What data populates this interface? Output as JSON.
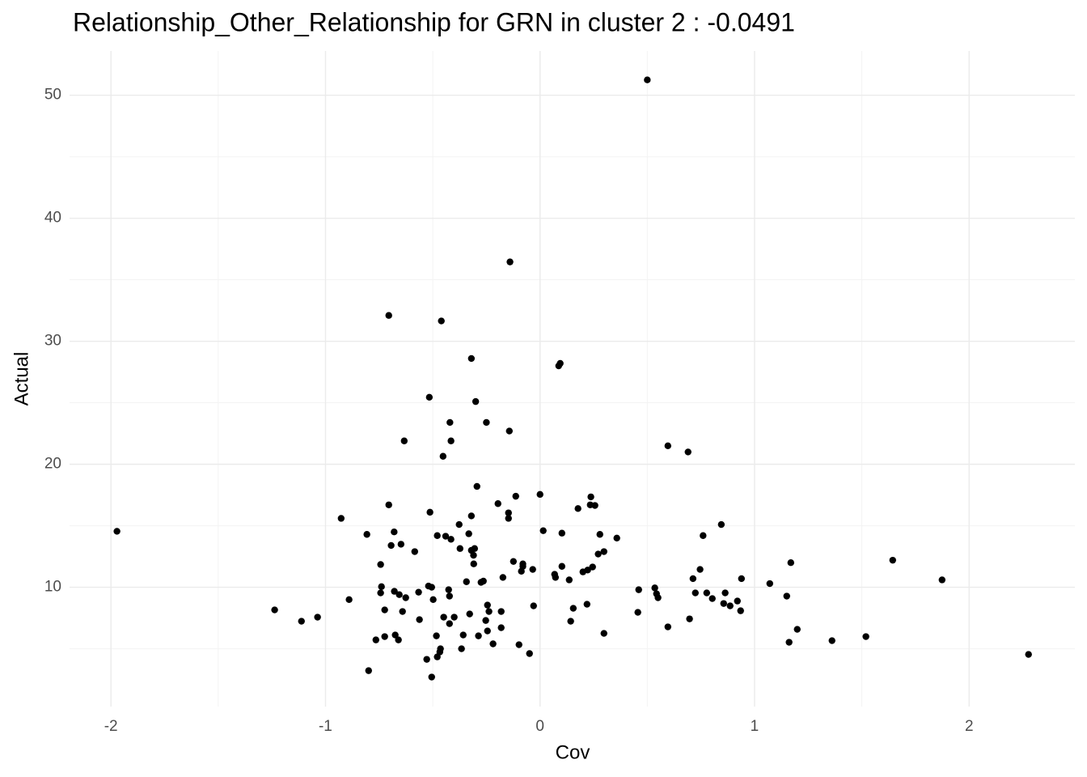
{
  "chart_data": {
    "type": "scatter",
    "title": "Relationship_Other_Relationship for GRN in cluster 2 : -0.0491",
    "x_label": "Cov",
    "y_label": "Actual",
    "xlim": [
      -2.193,
      2.493
    ],
    "ylim": [
      0.3,
      53.6
    ],
    "xticks": [
      -2,
      -1,
      0,
      1,
      2
    ],
    "yticks": [
      10,
      20,
      30,
      40,
      50
    ],
    "xminor_ticks": [
      -1.5,
      -0.5,
      0.5,
      1.5
    ],
    "yminor_ticks": [
      5,
      15,
      25,
      35,
      45
    ],
    "grid": true,
    "color": "#000000",
    "x": [
      0.5,
      -0.14,
      -0.705,
      -0.46,
      -0.32,
      0.094,
      0.087,
      -0.516,
      -0.3,
      -0.42,
      -0.25,
      -0.143,
      -0.633,
      -0.415,
      0.596,
      0.69,
      -0.452,
      -0.294,
      -0.113,
      0.0,
      0.237,
      -0.196,
      -0.705,
      0.234,
      0.256,
      0.177,
      -0.513,
      -0.147,
      -0.147,
      -0.927,
      -0.32,
      0.845,
      -0.377,
      0.015,
      -1.972,
      -0.68,
      0.102,
      -0.807,
      -0.479,
      -0.332,
      -0.44,
      -0.415,
      0.279,
      0.76,
      0.358,
      -0.694,
      -0.648,
      -0.373,
      -0.32,
      -0.305,
      -0.584,
      0.298,
      0.271,
      -0.31,
      1.644,
      -0.124,
      1.169,
      -0.309,
      -0.08,
      -0.08,
      -0.743,
      0.102,
      -0.034,
      -0.087,
      0.746,
      0.245,
      0.222,
      0.2,
      0.068,
      0.072,
      -0.173,
      0.136,
      0.713,
      0.939,
      -0.264,
      -0.275,
      -0.343,
      1.874,
      1.071,
      -0.52,
      -0.505,
      -0.739,
      0.535,
      -0.426,
      0.46,
      -0.679,
      -0.566,
      -0.743,
      -0.656,
      0.543,
      0.724,
      0.777,
      0.863,
      -0.422,
      0.55,
      -0.626,
      1.15,
      -0.498,
      0.803,
      -0.89,
      0.92,
      0.856,
      0.886,
      0.219,
      -0.245,
      -0.03,
      0.155,
      -0.724,
      -1.237,
      0.935,
      -0.238,
      -0.641,
      -0.181,
      0.456,
      -0.328,
      -1.037,
      -0.449,
      -0.4,
      -0.562,
      0.697,
      -0.253,
      -1.112,
      0.143,
      -0.422,
      0.596,
      -0.181,
      1.199,
      -0.245,
      0.298,
      -0.675,
      -0.724,
      -0.287,
      -0.483,
      1.519,
      -0.358,
      -0.66,
      -0.765,
      1.361,
      1.161,
      -0.219,
      -0.098,
      -0.366,
      -0.464,
      -0.467,
      -0.049,
      2.277,
      -0.479,
      -0.528,
      -0.799,
      -0.505
    ],
    "values": [
      51.25,
      36.45,
      32.1,
      31.65,
      28.6,
      28.2,
      28.0,
      25.45,
      25.1,
      23.4,
      23.4,
      22.7,
      21.9,
      21.9,
      21.5,
      21.0,
      20.65,
      18.2,
      17.4,
      17.55,
      17.35,
      16.8,
      16.7,
      16.7,
      16.65,
      16.4,
      16.1,
      16.05,
      15.6,
      15.6,
      15.8,
      15.1,
      15.1,
      14.6,
      14.55,
      14.5,
      14.4,
      14.3,
      14.2,
      14.35,
      14.15,
      13.9,
      14.3,
      14.2,
      14.0,
      13.4,
      13.5,
      13.15,
      13.0,
      13.15,
      12.9,
      12.9,
      12.7,
      12.6,
      12.2,
      12.1,
      12.0,
      11.9,
      11.9,
      11.7,
      11.85,
      11.7,
      11.45,
      11.3,
      11.45,
      11.65,
      11.4,
      11.25,
      11.05,
      10.8,
      10.8,
      10.6,
      10.7,
      10.7,
      10.5,
      10.4,
      10.45,
      10.6,
      10.3,
      10.1,
      10.0,
      10.05,
      9.95,
      9.8,
      9.8,
      9.67,
      9.6,
      9.54,
      9.4,
      9.47,
      9.54,
      9.54,
      9.54,
      9.28,
      9.15,
      9.15,
      9.28,
      9.0,
      9.08,
      9.0,
      8.88,
      8.68,
      8.49,
      8.62,
      8.55,
      8.49,
      8.29,
      8.16,
      8.16,
      8.09,
      8.03,
      8.03,
      8.03,
      7.96,
      7.83,
      7.57,
      7.57,
      7.57,
      7.37,
      7.43,
      7.3,
      7.24,
      7.24,
      7.04,
      6.78,
      6.71,
      6.58,
      6.45,
      6.25,
      6.12,
      5.99,
      6.05,
      6.05,
      5.99,
      6.12,
      5.72,
      5.72,
      5.66,
      5.53,
      5.4,
      5.33,
      5.0,
      5.0,
      4.74,
      4.61,
      4.54,
      4.34,
      4.14,
      3.22,
      2.7
    ]
  }
}
